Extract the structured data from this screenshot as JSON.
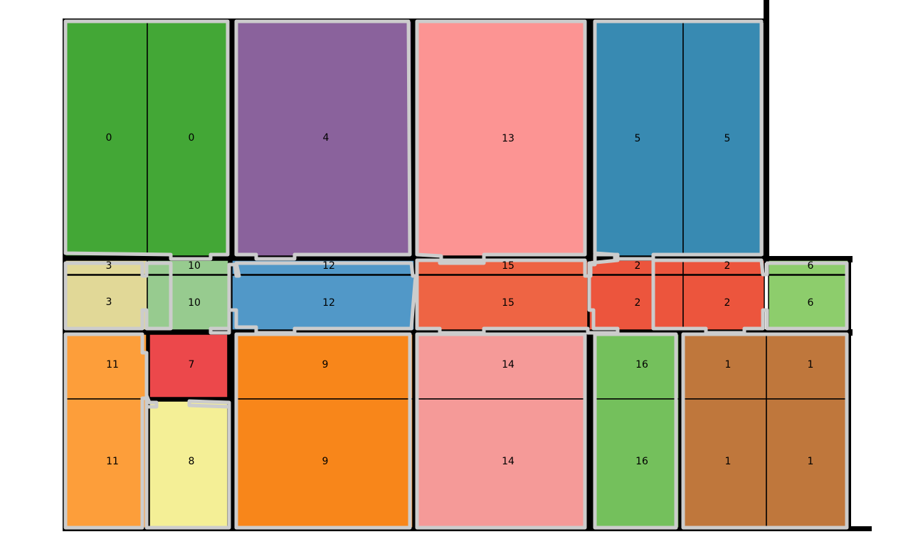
{
  "colors": {
    "0": "#43a736",
    "1": "#bf773c",
    "2": "#ec553d",
    "3": "#e1d897",
    "4": "#8a629c",
    "5": "#388ab2",
    "6": "#8dcd6c",
    "7": "#ec484b",
    "8": "#f4ef96",
    "9": "#f8861a",
    "10": "#97cb8f",
    "11": "#fd9e3a",
    "12": "#5198c8",
    "13": "#fc9493",
    "14": "#f59a98",
    "15": "#ee6444",
    "16": "#74c05c"
  },
  "outline_color": "#cccccc",
  "cells": [
    {
      "id": "0"
    },
    {
      "id": "0"
    },
    {
      "id": "4"
    },
    {
      "id": "13"
    },
    {
      "id": "5"
    },
    {
      "id": "5"
    },
    {
      "id": "3"
    },
    {
      "id": "10"
    },
    {
      "id": "12"
    },
    {
      "id": "15"
    },
    {
      "id": "2"
    },
    {
      "id": "2"
    },
    {
      "id": "6"
    },
    {
      "id": "3"
    },
    {
      "id": "10"
    },
    {
      "id": "12"
    },
    {
      "id": "15"
    },
    {
      "id": "2"
    },
    {
      "id": "2"
    },
    {
      "id": "6"
    },
    {
      "id": "11"
    },
    {
      "id": "7"
    },
    {
      "id": "9"
    },
    {
      "id": "14"
    },
    {
      "id": "16"
    },
    {
      "id": "1"
    },
    {
      "id": "1"
    },
    {
      "id": "11"
    },
    {
      "id": "8"
    },
    {
      "id": "9"
    },
    {
      "id": "14"
    },
    {
      "id": "16"
    },
    {
      "id": "1"
    },
    {
      "id": "1"
    }
  ]
}
